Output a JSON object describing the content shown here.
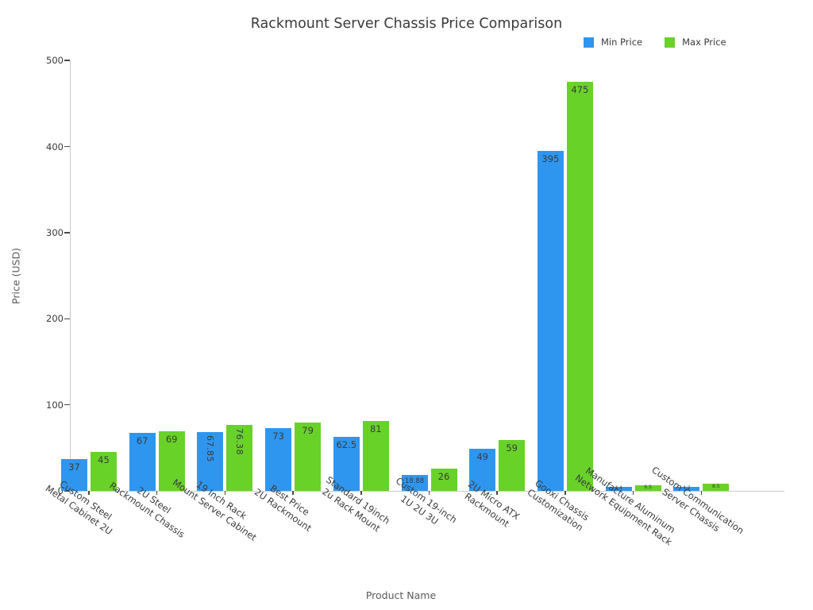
{
  "chart_data": {
    "type": "bar",
    "title": "Rackmount Server Chassis Price Comparison",
    "xlabel": "Product Name",
    "ylabel": "Price (USD)",
    "ylim": [
      0,
      500
    ],
    "yticks": [
      0,
      100,
      200,
      300,
      400,
      500
    ],
    "grid": false,
    "legend_position": "top-right",
    "categories": [
      "Custom Steel Metal Cabinet 2U",
      "2U Steel Rackmount Chassis",
      "19 Inch Rack Mount Server Cabinet",
      "Best Price 2U Rackmount",
      "Standard 19inch 2u Rack Mount",
      "Custom 19-inch 1U 2U 3U",
      "2U Micro ATX Rackmount",
      "Gooxi Chassis Customization",
      "Manufacture Aluminum Network Equipment Rack",
      "Custom Communication Server Chassis"
    ],
    "category_lines": [
      [
        "Custom Steel",
        "Metal Cabinet 2U"
      ],
      [
        "2U Steel",
        "Rackmount Chassis"
      ],
      [
        "19 Inch Rack",
        "Mount Server Cabinet"
      ],
      [
        "Best Price",
        "2U Rackmount"
      ],
      [
        "Standard 19inch",
        "2u Rack Mount"
      ],
      [
        "Custom 19-inch",
        "1U 2U 3U"
      ],
      [
        "2U Micro ATX",
        "Rackmount"
      ],
      [
        "Gooxi Chassis",
        "Customization"
      ],
      [
        "Manufacture Aluminum",
        "Network Equipment Rack"
      ],
      [
        "Custom Communication",
        "Server Chassis"
      ]
    ],
    "series": [
      {
        "name": "Min Price",
        "color": "#2f96f0",
        "values": [
          37,
          67,
          67.85,
          73,
          62.5,
          18.88,
          49,
          395,
          4.4,
          4.2
        ],
        "labels": [
          "37",
          "67",
          "67.85",
          "73",
          "62.5",
          "18.88",
          "49",
          "395",
          "4.4",
          "4.2"
        ]
      },
      {
        "name": "Max Price",
        "color": "#68d229",
        "values": [
          45,
          69,
          76.38,
          79,
          81,
          26,
          59,
          475,
          6.5,
          8.5
        ],
        "labels": [
          "45",
          "69",
          "76.38",
          "79",
          "81",
          "26",
          "59",
          "475",
          "6.5",
          "8.5"
        ]
      }
    ]
  }
}
